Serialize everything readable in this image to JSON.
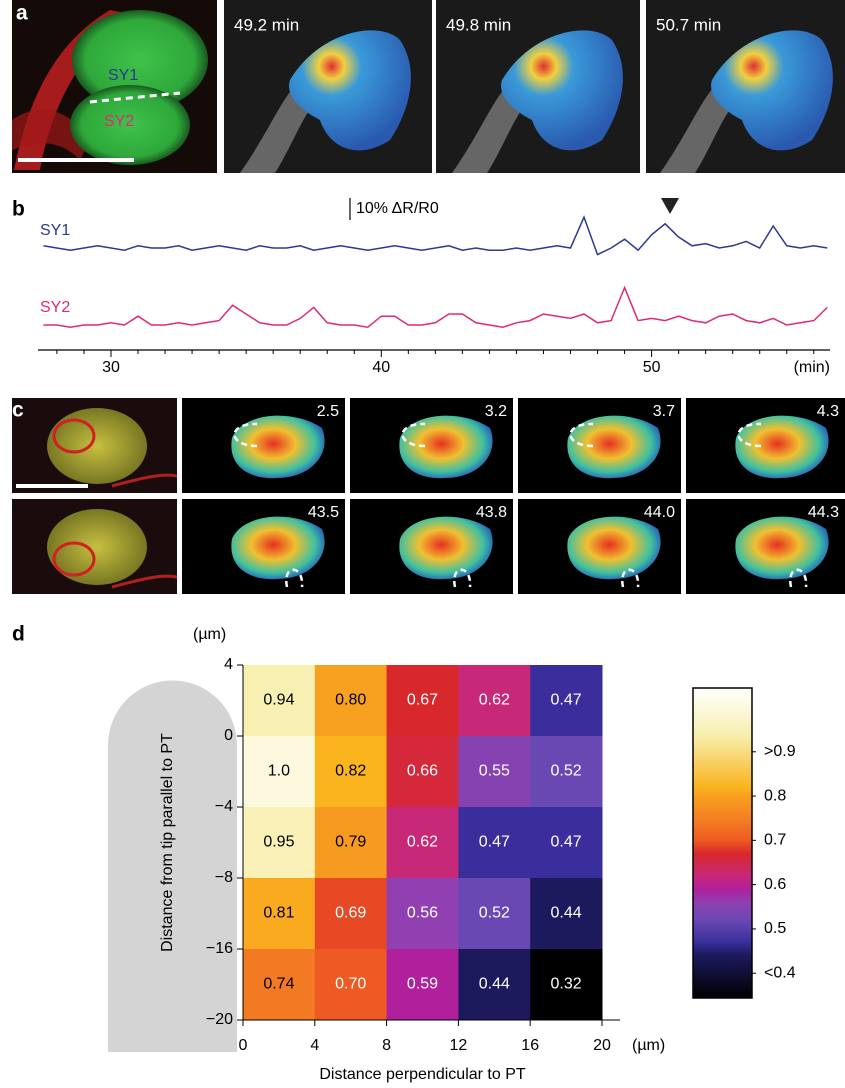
{
  "panel_labels": [
    "a",
    "b",
    "c",
    "d"
  ],
  "panel_a": {
    "roi_labels": [
      "SY1",
      "SY2"
    ],
    "time_labels": [
      "49.2 min",
      "49.8 min",
      "50.7 min"
    ]
  },
  "panel_c": {
    "time_labels": [
      "2.5",
      "3.2",
      "3.7",
      "4.3",
      "43.5",
      "43.8",
      "44.0",
      "44.3"
    ]
  },
  "chart_data": [
    {
      "type": "line",
      "x": [
        27.5,
        28,
        28.5,
        29,
        29.5,
        30,
        30.5,
        31,
        31.5,
        32,
        32.5,
        33,
        33.5,
        34,
        34.5,
        35,
        35.5,
        36,
        36.5,
        37,
        37.5,
        38,
        38.5,
        39,
        39.5,
        40,
        40.5,
        41,
        41.5,
        42,
        42.5,
        43,
        43.5,
        44,
        44.5,
        45,
        45.5,
        46,
        46.5,
        47,
        47.5,
        48,
        48.5,
        49,
        49.5,
        50,
        50.5,
        51,
        51.5,
        52,
        52.5,
        53,
        53.5,
        54,
        54.5,
        55,
        55.5,
        56,
        56.5
      ],
      "xlim": [
        27.3,
        56.6
      ],
      "xticks": [
        30,
        40,
        50
      ],
      "minor_xticks": [
        28,
        29,
        31,
        32,
        33,
        34,
        35,
        36,
        37,
        38,
        39,
        41,
        42,
        43,
        44,
        45,
        46,
        47,
        48,
        49,
        51,
        52,
        53,
        54,
        55,
        56
      ],
      "x_unit": "(min)",
      "scale_bar": {
        "value": 10,
        "label": "10% ΔR/R0"
      },
      "series": [
        {
          "name": "SY1",
          "color": "#2b3990",
          "values": [
            1,
            0,
            -1,
            0,
            1,
            0,
            -1,
            1,
            0,
            0,
            1,
            -1,
            0,
            1,
            0,
            -1,
            1,
            0,
            0,
            1,
            -1,
            0,
            1,
            0,
            -1,
            0,
            1,
            0,
            -1,
            0,
            1,
            -1,
            0,
            -1,
            -1,
            0,
            -1,
            0,
            1,
            0,
            14,
            -3,
            0,
            4,
            -1,
            6,
            11,
            5,
            1,
            2,
            0,
            1,
            3,
            0,
            10,
            1,
            0,
            1,
            0
          ]
        },
        {
          "name": "SY2",
          "color": "#e0287a",
          "values": [
            0,
            0,
            -1,
            0,
            0,
            1,
            0,
            4,
            0,
            0,
            1,
            0,
            1,
            2,
            9,
            5,
            1,
            0,
            0,
            3,
            8,
            1,
            0,
            0,
            -1,
            4,
            4,
            0,
            0,
            1,
            5,
            5,
            1,
            0,
            -1,
            1,
            2,
            5,
            4,
            3,
            5,
            1,
            2,
            17,
            2,
            3,
            2,
            4,
            2,
            1,
            4,
            5,
            2,
            1,
            3,
            0,
            1,
            2,
            8
          ]
        }
      ]
    },
    {
      "type": "heatmap",
      "x_label": "Distance perpendicular to PT",
      "y_label": "Distance from tip parallel to PT",
      "x_unit": "(µm)",
      "y_unit": "(µm)",
      "xlim": [
        0,
        20
      ],
      "xticks": [
        0,
        4,
        8,
        12,
        16,
        20
      ],
      "yticks": [
        4,
        0,
        {
          "value": -4,
          "label": "−4"
        },
        {
          "value": -8,
          "label": "−8"
        },
        {
          "value": -16,
          "label": "−16"
        },
        {
          "value": -20,
          "label": "−20"
        }
      ],
      "values": [
        [
          0.94,
          0.8,
          0.67,
          0.62,
          0.47
        ],
        [
          1.0,
          0.82,
          0.66,
          0.55,
          0.52
        ],
        [
          0.95,
          0.79,
          0.62,
          0.47,
          0.47
        ],
        [
          0.81,
          0.69,
          0.56,
          0.52,
          0.44
        ],
        [
          0.74,
          0.7,
          0.59,
          0.44,
          0.32
        ]
      ],
      "value_labels": [
        [
          "0.94",
          "0.80",
          "0.67",
          "0.62",
          "0.47"
        ],
        [
          "1.0",
          "0.82",
          "0.66",
          "0.55",
          "0.52"
        ],
        [
          "0.95",
          "0.79",
          "0.62",
          "0.47",
          "0.47"
        ],
        [
          "0.81",
          "0.69",
          "0.56",
          "0.52",
          "0.44"
        ],
        [
          "0.74",
          "0.70",
          "0.59",
          "0.44",
          "0.32"
        ]
      ],
      "colorbar": {
        "lim": [
          0.344,
          1.044
        ],
        "ticks": [
          {
            "value": 0.9,
            "label": ">0.9"
          },
          0.8,
          0.7,
          0.6,
          0.5,
          {
            "value": 0.4,
            "label": "<0.4"
          }
        ],
        "colormap": [
          [
            0.344,
            "#000000"
          ],
          [
            0.44,
            "#1c1a5c"
          ],
          [
            0.47,
            "#3a2e9c"
          ],
          [
            0.52,
            "#6a48b4"
          ],
          [
            0.56,
            "#9040b0"
          ],
          [
            0.59,
            "#b0209c"
          ],
          [
            0.62,
            "#c82878"
          ],
          [
            0.67,
            "#d8282c"
          ],
          [
            0.7,
            "#ee5a22"
          ],
          [
            0.74,
            "#f27a22"
          ],
          [
            0.8,
            "#f8a020"
          ],
          [
            0.82,
            "#f9b41e"
          ],
          [
            0.94,
            "#f8f0b0"
          ],
          [
            1.044,
            "#ffffff"
          ]
        ]
      }
    }
  ]
}
